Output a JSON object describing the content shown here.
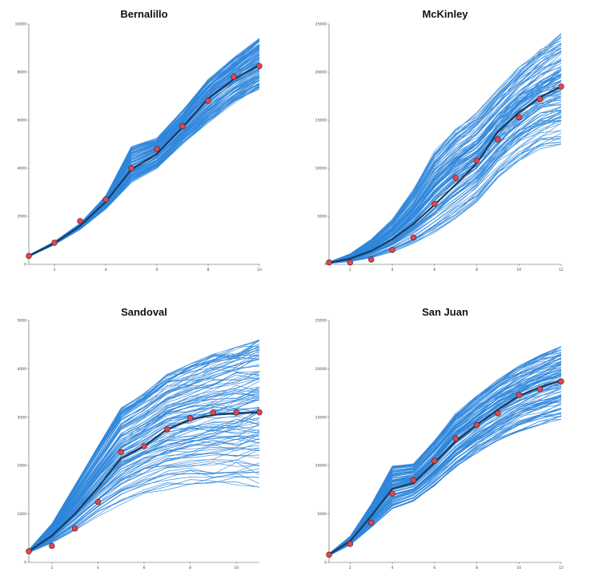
{
  "colors": {
    "sim": "#2f86dc",
    "mean": "#1b3a5c",
    "point": "#e0464e",
    "point_stroke": "#4a1a1a",
    "axis": "#555555"
  },
  "chart_data": [
    {
      "type": "line",
      "title": "Bernalillo",
      "xlim": [
        1,
        10
      ],
      "ylim": [
        0,
        10000
      ],
      "xticks": [
        2,
        4,
        6,
        8,
        10
      ],
      "yticks": [
        0,
        2000,
        4000,
        6000,
        8000,
        10000
      ],
      "x": [
        1,
        2,
        3,
        4,
        5,
        6,
        7,
        8,
        9,
        10
      ],
      "observed": [
        350,
        900,
        1800,
        2700,
        4000,
        4800,
        5750,
        6800,
        7800,
        8250
      ],
      "mean": [
        350,
        880,
        1600,
        2600,
        3950,
        4600,
        5700,
        6900,
        7700,
        8300
      ],
      "band_low": [
        320,
        820,
        1450,
        2300,
        3400,
        4000,
        5000,
        5900,
        6700,
        7300
      ],
      "band_high": [
        380,
        950,
        1700,
        2850,
        4900,
        5250,
        6400,
        7700,
        8600,
        9400
      ],
      "n_sims": 120
    },
    {
      "type": "line",
      "title": "McKinley",
      "xlim": [
        1,
        12
      ],
      "ylim": [
        0,
        25000
      ],
      "xticks": [
        2,
        4,
        6,
        8,
        10,
        12
      ],
      "yticks": [
        0,
        5000,
        10000,
        15000,
        20000,
        25000
      ],
      "x": [
        1,
        2,
        3,
        4,
        5,
        6,
        7,
        8,
        9,
        10,
        11,
        12
      ],
      "observed": [
        200,
        200,
        500,
        1500,
        2800,
        6300,
        9000,
        10800,
        13000,
        15300,
        17200,
        18500
      ],
      "mean": [
        150,
        600,
        1400,
        2600,
        4200,
        6200,
        8300,
        10500,
        13800,
        15800,
        17400,
        18500
      ],
      "band_low": [
        100,
        300,
        700,
        1300,
        2200,
        3300,
        4800,
        6500,
        9000,
        10800,
        12000,
        12500
      ],
      "band_high": [
        250,
        1100,
        2600,
        4700,
        7800,
        11800,
        14200,
        15800,
        18200,
        20500,
        22500,
        24000
      ],
      "n_sims": 120
    },
    {
      "type": "line",
      "title": "Sandoval",
      "xlim": [
        1,
        11
      ],
      "ylim": [
        0,
        5000
      ],
      "xticks": [
        2,
        4,
        6,
        8,
        10
      ],
      "yticks": [
        0,
        1000,
        2000,
        3000,
        4000,
        5000
      ],
      "x": [
        1,
        2,
        3,
        4,
        5,
        6,
        7,
        8,
        9,
        10,
        11
      ],
      "observed": [
        230,
        340,
        700,
        1250,
        2280,
        2400,
        2750,
        2980,
        3100,
        3100,
        3100
      ],
      "mean": [
        230,
        550,
        1000,
        1550,
        2150,
        2400,
        2750,
        2950,
        3050,
        3080,
        3100
      ],
      "band_low": [
        200,
        400,
        650,
        950,
        1200,
        1400,
        1500,
        1550,
        1550,
        1550,
        1550
      ],
      "band_high": [
        260,
        800,
        1600,
        2400,
        3200,
        3500,
        3900,
        4100,
        4300,
        4450,
        4600
      ],
      "n_sims": 120
    },
    {
      "type": "line",
      "title": "San Juan",
      "xlim": [
        1,
        12
      ],
      "ylim": [
        0,
        25000
      ],
      "xticks": [
        2,
        4,
        6,
        8,
        10,
        12
      ],
      "yticks": [
        0,
        5000,
        10000,
        15000,
        20000,
        25000
      ],
      "x": [
        1,
        2,
        3,
        4,
        5,
        6,
        7,
        8,
        9,
        10,
        11,
        12
      ],
      "observed": [
        800,
        1900,
        4100,
        7100,
        8500,
        10500,
        12800,
        14200,
        15400,
        17300,
        17900,
        18700
      ],
      "mean": [
        800,
        2200,
        4800,
        7600,
        8200,
        10300,
        12500,
        14200,
        15800,
        17200,
        18100,
        18800
      ],
      "band_low": [
        700,
        1800,
        3600,
        5500,
        6300,
        7900,
        9800,
        11300,
        12500,
        13500,
        14200,
        14800
      ],
      "band_high": [
        900,
        2700,
        6000,
        10000,
        10200,
        12600,
        15400,
        17200,
        18900,
        20300,
        21400,
        22300
      ],
      "n_sims": 120
    }
  ]
}
